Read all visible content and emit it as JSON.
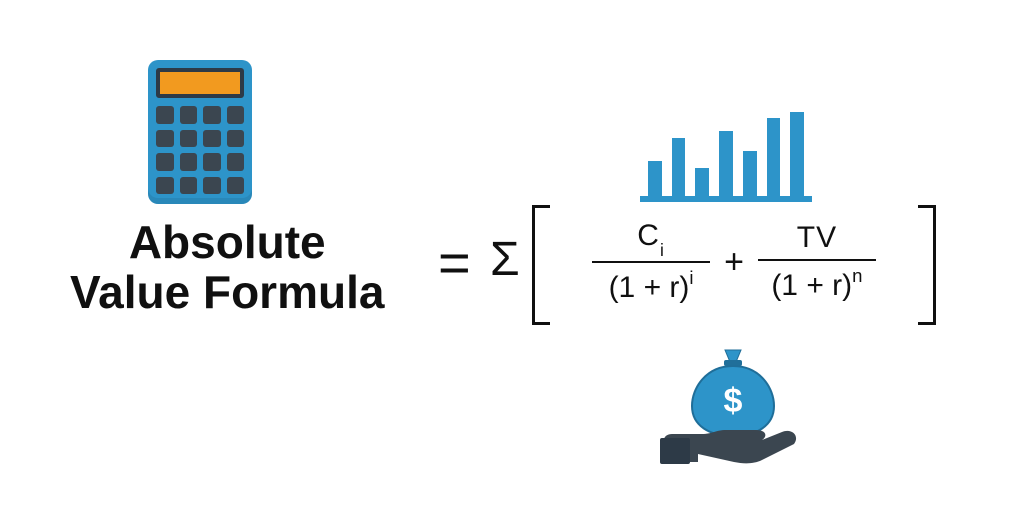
{
  "type": "infographic",
  "background_color": "#ffffff",
  "text_color": "#101010",
  "accent_blue": "#2d94c9",
  "accent_orange": "#f29a1f",
  "accent_dark": "#3b4650",
  "title": {
    "line1": "Absolute",
    "line2": "Value Formula",
    "fontsize": 46
  },
  "formula": {
    "equals": "=",
    "sigma": "Σ",
    "plus": "+",
    "term1": {
      "num_base": "C",
      "num_sub": "i",
      "den_expr": "(1 + r)",
      "den_sup": "i"
    },
    "term2": {
      "num_base": "TV",
      "den_expr": "(1 + r)",
      "den_sup": "n"
    },
    "bracket_color": "#101010"
  },
  "icons": {
    "calculator": {
      "body": "#2d94c9",
      "screen": "#f29a1f",
      "frame": "#2d3a47",
      "keys": "#3b4650",
      "rows": 4,
      "cols": 4
    },
    "chart": {
      "color": "#2d94c9",
      "baseline": true,
      "bars": [
        38,
        62,
        30,
        70,
        48,
        84,
        90
      ]
    },
    "money": {
      "bag": "#2d94c9",
      "bag_stroke": "#1f6e99",
      "symbol": "$",
      "symbol_color": "#ffffff",
      "hand": "#3b4650"
    }
  }
}
